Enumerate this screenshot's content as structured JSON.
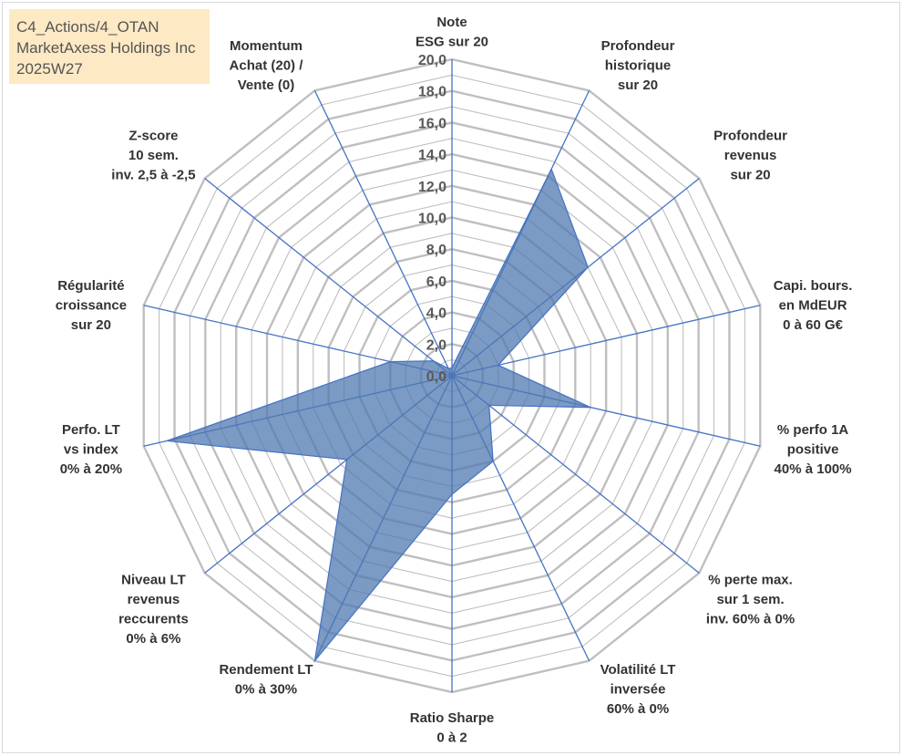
{
  "header": {
    "line1": "C4_Actions/4_OTAN",
    "line2": "MarketAxess Holdings Inc",
    "line3": "2025W27"
  },
  "colors": {
    "grid": "#bfbfbf",
    "spoke": "#4472c4",
    "fill": "#4f78b0",
    "fill_opacity": "0.75",
    "title_bg": "#fde9c4"
  },
  "chart_data": {
    "type": "radar",
    "rmin": 0,
    "rmax": 20,
    "grid_step": 1,
    "tick_step": 2,
    "tick_labels": [
      "0,0",
      "2,0",
      "4,0",
      "6,0",
      "8,0",
      "10,0",
      "12,0",
      "14,0",
      "16,0",
      "18,0",
      "20,0"
    ],
    "axes": [
      {
        "label": [
          "Note",
          "ESG sur 20"
        ],
        "value": 0.5
      },
      {
        "label": [
          "Profondeur",
          "historique",
          "sur 20"
        ],
        "value": 14.5
      },
      {
        "label": [
          "Profondeur",
          "revenus",
          "sur 20"
        ],
        "value": 11.0
      },
      {
        "label": [
          "Capi. bours.",
          "en MdEUR",
          "0 à 60 G€"
        ],
        "value": 3.0
      },
      {
        "label": [
          "% perfo 1A",
          "positive",
          "40% à 100%"
        ],
        "value": 9.0
      },
      {
        "label": [
          "% perte max.",
          "sur 1 sem.",
          "inv. 60% à 0%"
        ],
        "value": 3.0
      },
      {
        "label": [
          "Volatilité LT",
          "inversée",
          "60% à 0%"
        ],
        "value": 6.0
      },
      {
        "label": [
          "Ratio Sharpe",
          "0 à 2"
        ],
        "value": 7.5
      },
      {
        "label": [
          "Rendement LT",
          "0% à 30%"
        ],
        "value": 20.0
      },
      {
        "label": [
          "Niveau LT",
          "revenus",
          "reccurents",
          "0% à 6%"
        ],
        "value": 8.5
      },
      {
        "label": [
          "Perfo. LT",
          "vs index",
          "0% à 20%"
        ],
        "value": 18.5
      },
      {
        "label": [
          "Régularité",
          "croissance",
          "sur 20"
        ],
        "value": 4.0
      },
      {
        "label": [
          "Z-score",
          "10 sem.",
          "inv. 2,5 à -2,5"
        ],
        "value": 1.5
      },
      {
        "label": [
          "Momentum",
          "Achat (20) /",
          "Vente (0)"
        ],
        "value": 0.5
      }
    ]
  }
}
